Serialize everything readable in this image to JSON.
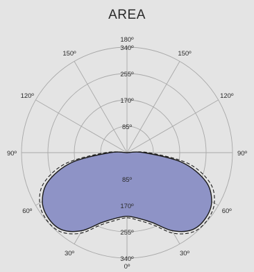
{
  "chart_data": {
    "type": "polar",
    "title": "AREA",
    "rmax": 340,
    "ring_values": [
      85,
      170,
      255,
      340
    ],
    "ring_labels": [
      "85",
      "170",
      "255",
      "340"
    ],
    "angle_labels": [
      {
        "deg": 180,
        "text": "180º"
      },
      {
        "deg": 150,
        "text": "150º",
        "side": "left"
      },
      {
        "deg": 150,
        "text": "150º",
        "side": "right"
      },
      {
        "deg": 120,
        "text": "120º",
        "side": "left"
      },
      {
        "deg": 120,
        "text": "120º",
        "side": "right"
      },
      {
        "deg": 90,
        "text": "90º",
        "side": "left"
      },
      {
        "deg": 90,
        "text": "90º",
        "side": "right"
      },
      {
        "deg": 60,
        "text": "60º",
        "side": "left"
      },
      {
        "deg": 60,
        "text": "60º",
        "side": "right"
      },
      {
        "deg": 30,
        "text": "30º",
        "side": "left"
      },
      {
        "deg": 30,
        "text": "30º",
        "side": "right"
      },
      {
        "deg": 0,
        "text": "0º"
      }
    ],
    "series": [
      {
        "style": "solid",
        "fill": "#8e93c6",
        "stroke": "#1a1a1a",
        "angles": [
          0,
          10,
          20,
          30,
          40,
          50,
          60,
          70,
          80,
          90,
          95
        ],
        "values": [
          205,
          215,
          240,
          290,
          325,
          330,
          315,
          270,
          180,
          55,
          0
        ]
      },
      {
        "style": "dashed",
        "stroke": "#1a1a1a",
        "angles": [
          0,
          10,
          20,
          30,
          40,
          50,
          60,
          70,
          80,
          90,
          95
        ],
        "values": [
          210,
          222,
          248,
          300,
          333,
          338,
          325,
          285,
          200,
          70,
          0
        ]
      }
    ],
    "colors": {
      "background": "#e4e4e4",
      "grid": "#a8a8a8"
    }
  }
}
